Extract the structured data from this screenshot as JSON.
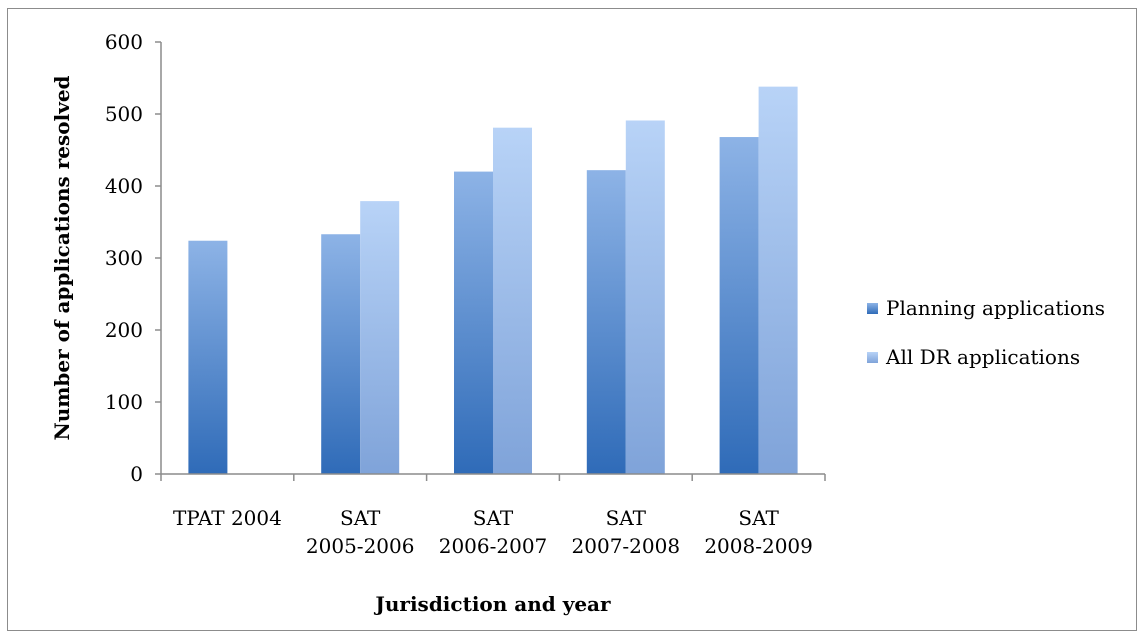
{
  "chart_data": {
    "type": "bar",
    "categories": [
      [
        "TPAT 2004"
      ],
      [
        "SAT",
        "2005-2006"
      ],
      [
        "SAT",
        "2006-2007"
      ],
      [
        "SAT",
        "2007-2008"
      ],
      [
        "SAT",
        "2008-2009"
      ]
    ],
    "series": [
      {
        "name": "Planning applications",
        "values": [
          324,
          333,
          420,
          422,
          468
        ],
        "color_dark": "#2f6bb8",
        "color_light": "#8db3e6"
      },
      {
        "name": "All DR applications",
        "values": [
          null,
          379,
          481,
          491,
          538
        ],
        "color_dark": "#7fa3d9",
        "color_light": "#b8d3f7"
      }
    ],
    "xlabel": "Jurisdiction and year",
    "ylabel": "Number of applications resolved",
    "ylim": [
      0,
      600
    ],
    "yticks": [
      0,
      100,
      200,
      300,
      400,
      500,
      600
    ],
    "grid": false,
    "legend": "right"
  }
}
